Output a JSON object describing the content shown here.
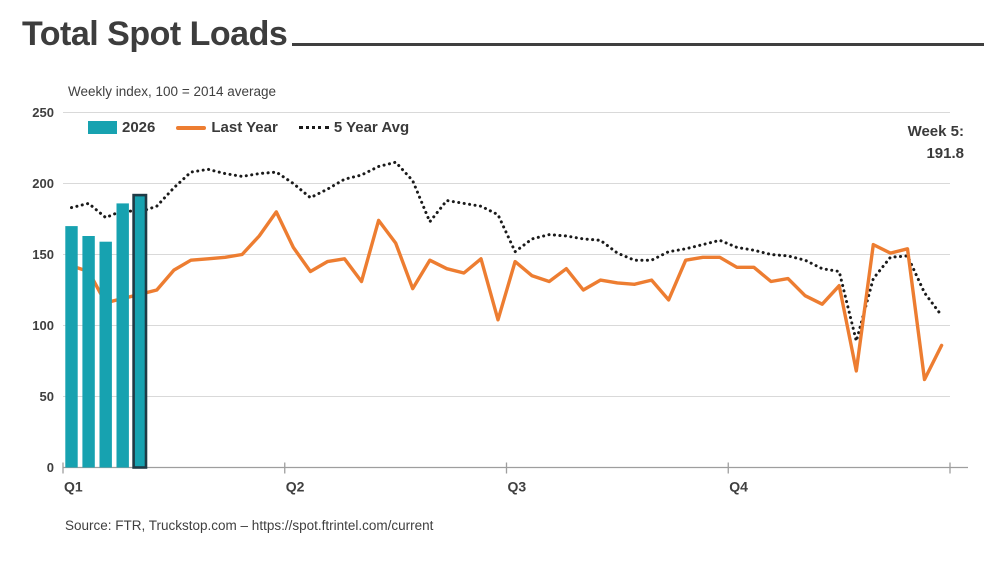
{
  "title": "Total Spot Loads",
  "subtitle": "Weekly index, 100 = 2014 average",
  "annotation": {
    "line1": "Week 5:",
    "line2": "191.8"
  },
  "source": "Source: FTR, Truckstop.com – https://spot.ftrintel.com/current",
  "legend": {
    "items": [
      {
        "label": "2026",
        "swatch": "bar"
      },
      {
        "label": "Last Year",
        "swatch": "line"
      },
      {
        "label": "5 Year Avg",
        "swatch": "dotted"
      }
    ]
  },
  "colors": {
    "teal": "#17A2B0",
    "teal_outline": "#1F3A45",
    "orange": "#ED7D31",
    "dotted": "#1A1A1A",
    "grid": "#D9D9D9",
    "axis": "#9E9E9E",
    "text": "#3F3F3F"
  },
  "chart_data": {
    "type": "bar",
    "combo": "bar + line + dotted-line, weekly index over one year",
    "title": "Total Spot Loads",
    "subtitle": "Weekly index, 100 = 2014 average",
    "xlabel": "",
    "ylabel": "",
    "x_axis": {
      "labels": [
        "Q1",
        "Q2",
        "Q3",
        "Q4"
      ],
      "unit": "week",
      "total_weeks": 52,
      "weeks_per_quarter": 13
    },
    "y_axis": {
      "ticks": [
        0,
        50,
        100,
        150,
        200,
        250
      ],
      "min": 0,
      "max": 250
    },
    "grid": true,
    "legend_position": "top-left",
    "highlight": {
      "series": "2026",
      "week": 5,
      "label": "Week 5:",
      "value": 191.8
    },
    "series": [
      {
        "name": "2026",
        "type": "bar",
        "color": "#17A2B0",
        "weeks": [
          1,
          2,
          3,
          4,
          5
        ],
        "values": [
          170,
          163,
          159,
          186,
          191.8
        ],
        "highlight_last": true
      },
      {
        "name": "Last Year",
        "type": "line",
        "color": "#ED7D31",
        "values": [
          142,
          138,
          116,
          119,
          122,
          125,
          139,
          146,
          147,
          148,
          150,
          163,
          180,
          155,
          138,
          145,
          147,
          131,
          174,
          158,
          126,
          146,
          140,
          137,
          147,
          104,
          145,
          135,
          131,
          140,
          125,
          132,
          130,
          129,
          132,
          118,
          146,
          148,
          148,
          141,
          141,
          131,
          133,
          121,
          115,
          128,
          68,
          157,
          151,
          154,
          62,
          86
        ]
      },
      {
        "name": "5 Year Avg",
        "type": "dotted-line",
        "color": "#1A1A1A",
        "values": [
          183,
          186,
          176,
          181,
          180,
          184,
          197,
          208,
          210,
          207,
          205,
          207,
          208,
          200,
          190,
          196,
          203,
          206,
          212,
          215,
          202,
          173,
          188,
          186,
          184,
          178,
          152,
          161,
          164,
          163,
          161,
          160,
          151,
          146,
          146,
          152,
          154,
          157,
          160,
          155,
          153,
          150,
          149,
          146,
          140,
          138,
          89,
          133,
          148,
          149,
          123,
          107
        ]
      }
    ]
  }
}
